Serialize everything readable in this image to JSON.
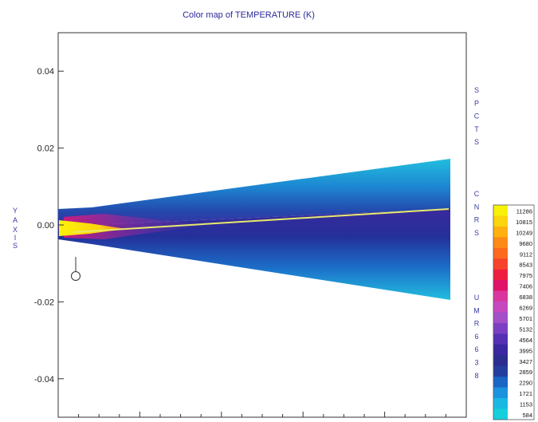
{
  "chart_data": {
    "type": "heatmap",
    "title": "Color map of  TEMPERATURE (K)",
    "ylabel": "YAXIS",
    "ylim": [
      -0.05,
      0.05
    ],
    "y_ticks": [
      0.04,
      0.02,
      0.0,
      -0.02,
      -0.04
    ],
    "y_tick_labels": [
      "0.04",
      "0.02",
      "0.00",
      "-0.02",
      "-0.04"
    ],
    "x_axis": "unlabeled",
    "right_annotation": [
      "SPCTS",
      "CNRS",
      "UMR6638"
    ],
    "colorbar": {
      "placement": "right",
      "levels": [
        11286,
        10815,
        10249,
        9680,
        9112,
        8543,
        7975,
        7406,
        6838,
        6269,
        5701,
        5132,
        4564,
        3995,
        3427,
        2859,
        2290,
        1721,
        1153,
        584
      ],
      "level_labels": [
        "11286",
        "10815",
        "10249",
        "9680",
        "9112",
        "8543",
        "7975",
        "7406",
        "6838",
        "6269",
        "5701",
        "5132",
        "4564",
        "3995",
        "3427",
        "2859",
        "2290",
        "1721",
        "1153",
        "584"
      ],
      "colors": [
        "#f8f20a",
        "#fbd40d",
        "#fdb010",
        "#fd8a16",
        "#fc6a1e",
        "#f6432c",
        "#ee1e40",
        "#e0126a",
        "#d9379f",
        "#c548be",
        "#a24fc8",
        "#7c3fc2",
        "#5530b4",
        "#3b27a0",
        "#2b2d8f",
        "#233e9c",
        "#1a66c4",
        "#1a92dd",
        "#19b8e3",
        "#16cfdc"
      ]
    }
  }
}
